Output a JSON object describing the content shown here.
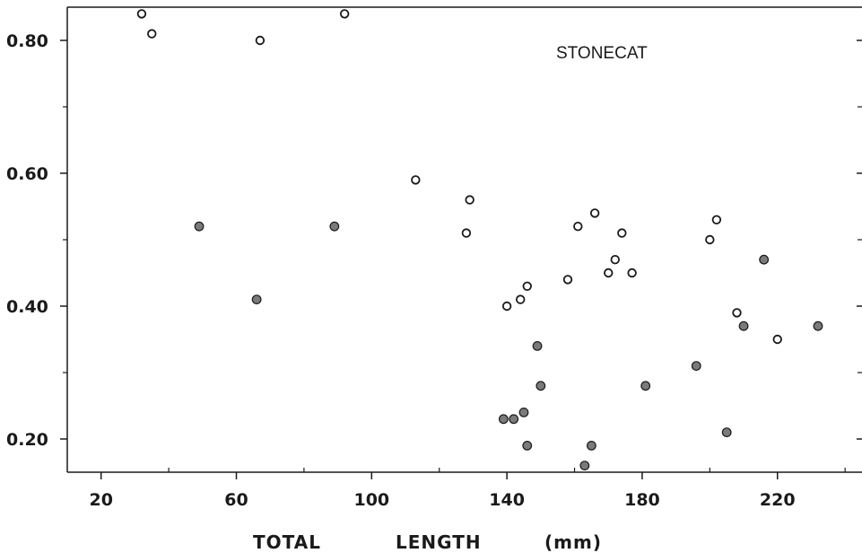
{
  "chart_data": {
    "type": "scatter",
    "title": "",
    "annotation": "STONECAT",
    "xlabel": {
      "word1": "TOTAL",
      "word2": "LENGTH",
      "unit": "(mm)"
    },
    "ylabel": "",
    "xlim": [
      10,
      245
    ],
    "ylim": [
      0.15,
      0.85
    ],
    "x_ticks": [
      20,
      60,
      100,
      140,
      180,
      220
    ],
    "x_tick_labels": [
      "20",
      "60",
      "100",
      "140",
      "180",
      "220"
    ],
    "x_minor_ticks": [
      40,
      80,
      120,
      160,
      200,
      240
    ],
    "y_ticks": [
      0.2,
      0.4,
      0.6,
      0.8
    ],
    "y_tick_labels": [
      "0.20",
      "0.40",
      "0.60",
      "0.80"
    ],
    "y_minor_ticks": [
      0.3,
      0.5,
      0.7
    ],
    "colors": {
      "open_marker": "#ffffff",
      "filled_marker": "#7a7a7a",
      "stroke": "#1a1a1a"
    },
    "series": [
      {
        "marker": "open-circle",
        "points": [
          {
            "x": 32,
            "y": 0.84
          },
          {
            "x": 35,
            "y": 0.81
          },
          {
            "x": 67,
            "y": 0.8
          },
          {
            "x": 92,
            "y": 0.84
          },
          {
            "x": 113,
            "y": 0.59
          },
          {
            "x": 128,
            "y": 0.51
          },
          {
            "x": 129,
            "y": 0.56
          },
          {
            "x": 140,
            "y": 0.4
          },
          {
            "x": 144,
            "y": 0.41
          },
          {
            "x": 146,
            "y": 0.43
          },
          {
            "x": 158,
            "y": 0.44
          },
          {
            "x": 161,
            "y": 0.52
          },
          {
            "x": 166,
            "y": 0.54
          },
          {
            "x": 170,
            "y": 0.45
          },
          {
            "x": 172,
            "y": 0.47
          },
          {
            "x": 174,
            "y": 0.51
          },
          {
            "x": 177,
            "y": 0.45
          },
          {
            "x": 200,
            "y": 0.5
          },
          {
            "x": 202,
            "y": 0.53
          },
          {
            "x": 208,
            "y": 0.39
          },
          {
            "x": 220,
            "y": 0.35
          }
        ]
      },
      {
        "marker": "filled-circle",
        "points": [
          {
            "x": 49,
            "y": 0.52
          },
          {
            "x": 66,
            "y": 0.41
          },
          {
            "x": 89,
            "y": 0.52
          },
          {
            "x": 139,
            "y": 0.23
          },
          {
            "x": 142,
            "y": 0.23
          },
          {
            "x": 145,
            "y": 0.24
          },
          {
            "x": 146,
            "y": 0.19
          },
          {
            "x": 149,
            "y": 0.34
          },
          {
            "x": 150,
            "y": 0.28
          },
          {
            "x": 163,
            "y": 0.16
          },
          {
            "x": 165,
            "y": 0.19
          },
          {
            "x": 181,
            "y": 0.28
          },
          {
            "x": 196,
            "y": 0.31
          },
          {
            "x": 205,
            "y": 0.21
          },
          {
            "x": 210,
            "y": 0.37
          },
          {
            "x": 216,
            "y": 0.47
          },
          {
            "x": 232,
            "y": 0.37
          }
        ]
      }
    ]
  }
}
